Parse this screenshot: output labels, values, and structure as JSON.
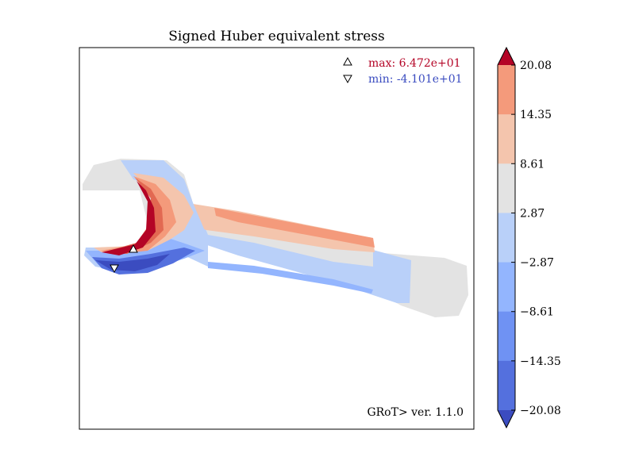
{
  "chart_data": {
    "type": "heatmap",
    "title": "Signed Huber equivalent stress",
    "xlabel": "",
    "ylabel": "",
    "grid": false,
    "annotations": {
      "max_label": "max:  6.472e+01",
      "min_label": "min: -4.101e+01",
      "max_value": 64.72,
      "min_value": -41.01,
      "max_marker": "up-triangle",
      "min_marker": "down-triangle",
      "legend_placement": "top-right",
      "footer": "GRoT> ver. 1.1.0",
      "footer_placement": "bottom-right"
    },
    "colorbar": {
      "levels": [
        -20.08,
        -14.35,
        -8.61,
        -2.87,
        2.87,
        8.61,
        14.35,
        20.08
      ],
      "tick_labels": [
        "−20.08",
        "−14.35",
        "−8.61",
        "−2.87",
        "2.87",
        "8.61",
        "14.35",
        "20.08"
      ],
      "colors": [
        "#5470de",
        "#6f92f3",
        "#93b5fe",
        "#b9d0f9",
        "#e3e3e3",
        "#f4c5ad",
        "#f49a7b",
        "#e26952"
      ],
      "extend_low_color": "#3b4cc0",
      "extend_high_color": "#b40426",
      "extend": "both"
    }
  },
  "colors": {
    "max_label_color": "#b40426",
    "min_label_color": "#3b4cc0"
  }
}
